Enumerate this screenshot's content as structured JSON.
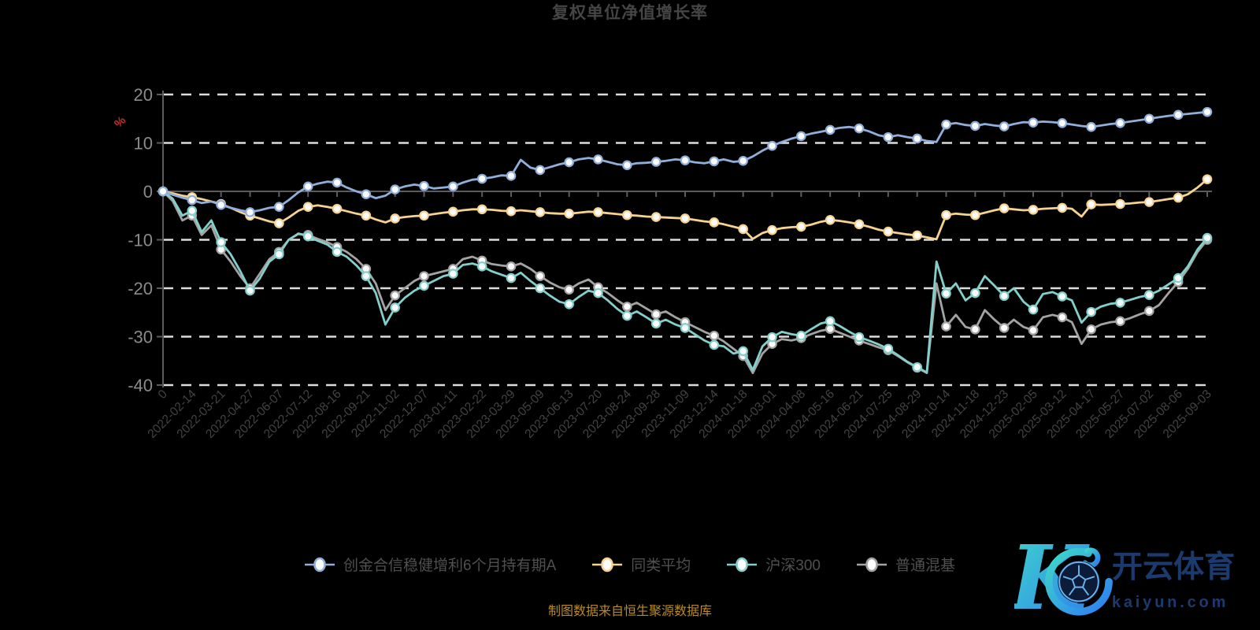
{
  "title": "复权单位净值增长率",
  "note": "制图数据来自恒生聚源数据库",
  "watermark": {
    "logo_letter": "K",
    "brand": "开云体育",
    "domain": "kaiyun.com"
  },
  "colors": {
    "background": "#000000",
    "title": "#454545",
    "grid": "#dcdcdc",
    "axis": "#5c5c5c",
    "y_label": "#8a8a8a",
    "x_label": "#434343",
    "unit": "#cc2a2a",
    "legend_text": "#4f4f4f",
    "note": "#ba8b1f",
    "marker_fill": "#fcfcfc",
    "logo_gradient_start": "#3fd9c8",
    "logo_gradient_end": "#2e7df2",
    "logo_text": "#1b3a6e",
    "ball_fill": "#0c1c38",
    "ball_lines": "#69b4f0"
  },
  "chart_data": {
    "type": "line",
    "title": "复权单位净值增长率",
    "y_unit": "%",
    "ylim": [
      -40,
      20
    ],
    "y_ticks": [
      20,
      10,
      0,
      -10,
      -20,
      -30,
      -40
    ],
    "grid": "dashed-horizontal",
    "legend_position": "bottom",
    "marker_every": 3,
    "x_labels": [
      "0",
      "2022-02-14",
      "2022-03-21",
      "2022-04-27",
      "2022-06-07",
      "2022-07-12",
      "2022-08-16",
      "2022-09-21",
      "2022-11-02",
      "2022-12-07",
      "2023-01-11",
      "2023-02-22",
      "2023-03-29",
      "2023-05-09",
      "2023-06-13",
      "2023-07-20",
      "2023-08-24",
      "2023-09-28",
      "2023-11-09",
      "2023-12-14",
      "2024-01-18",
      "2024-03-01",
      "2024-04-08",
      "2024-05-16",
      "2024-06-21",
      "2024-07-25",
      "2024-08-29",
      "2024-10-14",
      "2024-11-18",
      "2024-12-23",
      "2025-02-05",
      "2025-03-12",
      "2025-04-17",
      "2025-05-27",
      "2025-07-02",
      "2025-08-06",
      "2025-09-03"
    ],
    "series": [
      {
        "name": "创金合信稳健增利6个月持有期A",
        "color": "#8faed9",
        "values": [
          0.0,
          -0.7,
          -1.3,
          -1.8,
          -2.4,
          -2.1,
          -2.8,
          -3.4,
          -3.9,
          -4.3,
          -3.9,
          -3.4,
          -3.2,
          -1.8,
          -0.2,
          1.0,
          1.6,
          2.0,
          1.8,
          0.8,
          0.0,
          -0.6,
          -1.4,
          -0.9,
          0.4,
          1.0,
          1.4,
          1.1,
          0.6,
          0.8,
          1.0,
          1.8,
          2.4,
          2.6,
          2.9,
          3.3,
          3.2,
          6.5,
          4.9,
          4.4,
          5.0,
          5.6,
          6.0,
          6.6,
          6.9,
          6.6,
          6.1,
          5.6,
          5.4,
          5.8,
          5.9,
          6.1,
          6.3,
          6.6,
          6.4,
          6.0,
          5.8,
          6.2,
          6.6,
          6.1,
          6.3,
          7.2,
          8.4,
          9.4,
          10.2,
          10.9,
          11.4,
          11.9,
          12.3,
          12.7,
          13.1,
          13.3,
          13.0,
          12.4,
          11.6,
          11.2,
          11.6,
          11.2,
          10.9,
          10.4,
          10.2,
          13.8,
          14.1,
          13.7,
          13.5,
          13.9,
          13.6,
          13.4,
          13.9,
          14.3,
          14.2,
          14.4,
          14.3,
          14.1,
          13.8,
          13.5,
          13.3,
          13.6,
          13.9,
          14.1,
          14.4,
          14.7,
          15.0,
          15.3,
          15.6,
          15.8,
          16.0,
          16.2,
          16.4
        ]
      },
      {
        "name": "同类平均",
        "color": "#f7d28f",
        "values": [
          0.0,
          -0.4,
          -0.9,
          -1.2,
          -1.6,
          -2.1,
          -2.6,
          -3.4,
          -4.3,
          -5.0,
          -5.6,
          -6.2,
          -6.6,
          -5.4,
          -4.0,
          -3.2,
          -2.9,
          -3.2,
          -3.6,
          -4.1,
          -4.6,
          -5.0,
          -5.8,
          -6.4,
          -5.6,
          -5.3,
          -5.1,
          -5.0,
          -4.7,
          -4.4,
          -4.2,
          -3.9,
          -3.7,
          -3.7,
          -3.8,
          -4.0,
          -4.1,
          -3.9,
          -4.1,
          -4.3,
          -4.5,
          -4.6,
          -4.6,
          -4.4,
          -4.2,
          -4.3,
          -4.5,
          -4.7,
          -4.9,
          -5.0,
          -5.2,
          -5.3,
          -5.4,
          -5.5,
          -5.6,
          -5.9,
          -6.2,
          -6.4,
          -6.8,
          -7.3,
          -7.8,
          -9.8,
          -8.6,
          -8.0,
          -7.6,
          -7.4,
          -7.3,
          -6.9,
          -6.3,
          -5.9,
          -6.1,
          -6.4,
          -6.8,
          -7.3,
          -7.9,
          -8.3,
          -8.6,
          -8.9,
          -9.1,
          -9.5,
          -9.9,
          -4.9,
          -4.6,
          -4.8,
          -4.9,
          -4.4,
          -3.9,
          -3.5,
          -3.7,
          -3.9,
          -3.8,
          -3.6,
          -3.5,
          -3.4,
          -3.6,
          -5.2,
          -2.7,
          -2.8,
          -2.7,
          -2.6,
          -2.5,
          -2.3,
          -2.2,
          -1.9,
          -1.6,
          -1.3,
          -0.6,
          0.8,
          2.5
        ]
      },
      {
        "name": "沪深300",
        "color": "#82cfcb",
        "values": [
          0.0,
          -1.5,
          -5.0,
          -4.0,
          -8.4,
          -6.0,
          -10.5,
          -13.0,
          -16.5,
          -20.5,
          -18.0,
          -14.5,
          -13.0,
          -10.0,
          -8.7,
          -9.3,
          -10.2,
          -11.0,
          -12.5,
          -13.5,
          -15.3,
          -17.5,
          -21.0,
          -27.5,
          -24.0,
          -22.0,
          -20.5,
          -19.5,
          -18.5,
          -17.5,
          -17.0,
          -15.2,
          -14.9,
          -15.5,
          -16.5,
          -17.2,
          -17.9,
          -16.8,
          -18.5,
          -20.0,
          -21.5,
          -22.8,
          -23.3,
          -21.8,
          -20.5,
          -21.0,
          -22.5,
          -24.3,
          -25.7,
          -24.8,
          -26.0,
          -27.3,
          -26.5,
          -27.5,
          -28.2,
          -29.5,
          -30.8,
          -31.7,
          -32.0,
          -33.5,
          -33.0,
          -36.9,
          -32.0,
          -30.1,
          -29.0,
          -29.5,
          -29.8,
          -28.5,
          -27.3,
          -26.8,
          -27.8,
          -29.0,
          -30.1,
          -30.8,
          -31.6,
          -32.5,
          -33.8,
          -35.2,
          -36.3,
          -37.4,
          -14.5,
          -21.1,
          -19.0,
          -22.5,
          -21.0,
          -17.5,
          -19.5,
          -21.6,
          -20.0,
          -22.8,
          -24.4,
          -21.2,
          -20.8,
          -21.7,
          -22.5,
          -27.1,
          -24.9,
          -23.8,
          -23.2,
          -23.0,
          -22.4,
          -21.8,
          -21.4,
          -20.5,
          -19.2,
          -17.9,
          -15.5,
          -12.0,
          -9.6
        ]
      },
      {
        "name": "普通混基",
        "color": "#a3a3a3",
        "values": [
          0.0,
          -2.0,
          -6.0,
          -5.0,
          -9.0,
          -7.0,
          -12.0,
          -14.5,
          -17.5,
          -20.0,
          -17.0,
          -14.0,
          -12.5,
          -10.0,
          -8.8,
          -9.0,
          -9.8,
          -10.5,
          -11.5,
          -12.5,
          -14.0,
          -16.0,
          -19.0,
          -24.5,
          -21.5,
          -20.0,
          -18.5,
          -17.5,
          -17.0,
          -16.5,
          -16.0,
          -14.0,
          -13.5,
          -14.3,
          -15.0,
          -15.3,
          -15.5,
          -14.9,
          -16.0,
          -17.5,
          -18.8,
          -19.8,
          -20.3,
          -19.0,
          -18.2,
          -19.8,
          -21.0,
          -22.5,
          -23.8,
          -23.0,
          -24.2,
          -25.4,
          -24.8,
          -26.0,
          -27.0,
          -28.0,
          -29.0,
          -29.8,
          -31.0,
          -32.5,
          -34.0,
          -37.5,
          -33.5,
          -31.5,
          -30.5,
          -30.8,
          -30.3,
          -29.5,
          -28.8,
          -28.4,
          -29.2,
          -30.0,
          -30.8,
          -31.5,
          -32.2,
          -32.8,
          -34.0,
          -35.3,
          -36.4,
          -37.5,
          -19.0,
          -27.9,
          -25.5,
          -28.0,
          -28.5,
          -24.5,
          -26.5,
          -28.2,
          -26.5,
          -28.0,
          -28.7,
          -26.0,
          -25.5,
          -26.0,
          -27.0,
          -31.5,
          -28.5,
          -27.5,
          -27.0,
          -26.8,
          -26.2,
          -25.4,
          -24.7,
          -23.5,
          -21.0,
          -18.7,
          -16.0,
          -12.5,
          -10.0
        ]
      }
    ]
  }
}
